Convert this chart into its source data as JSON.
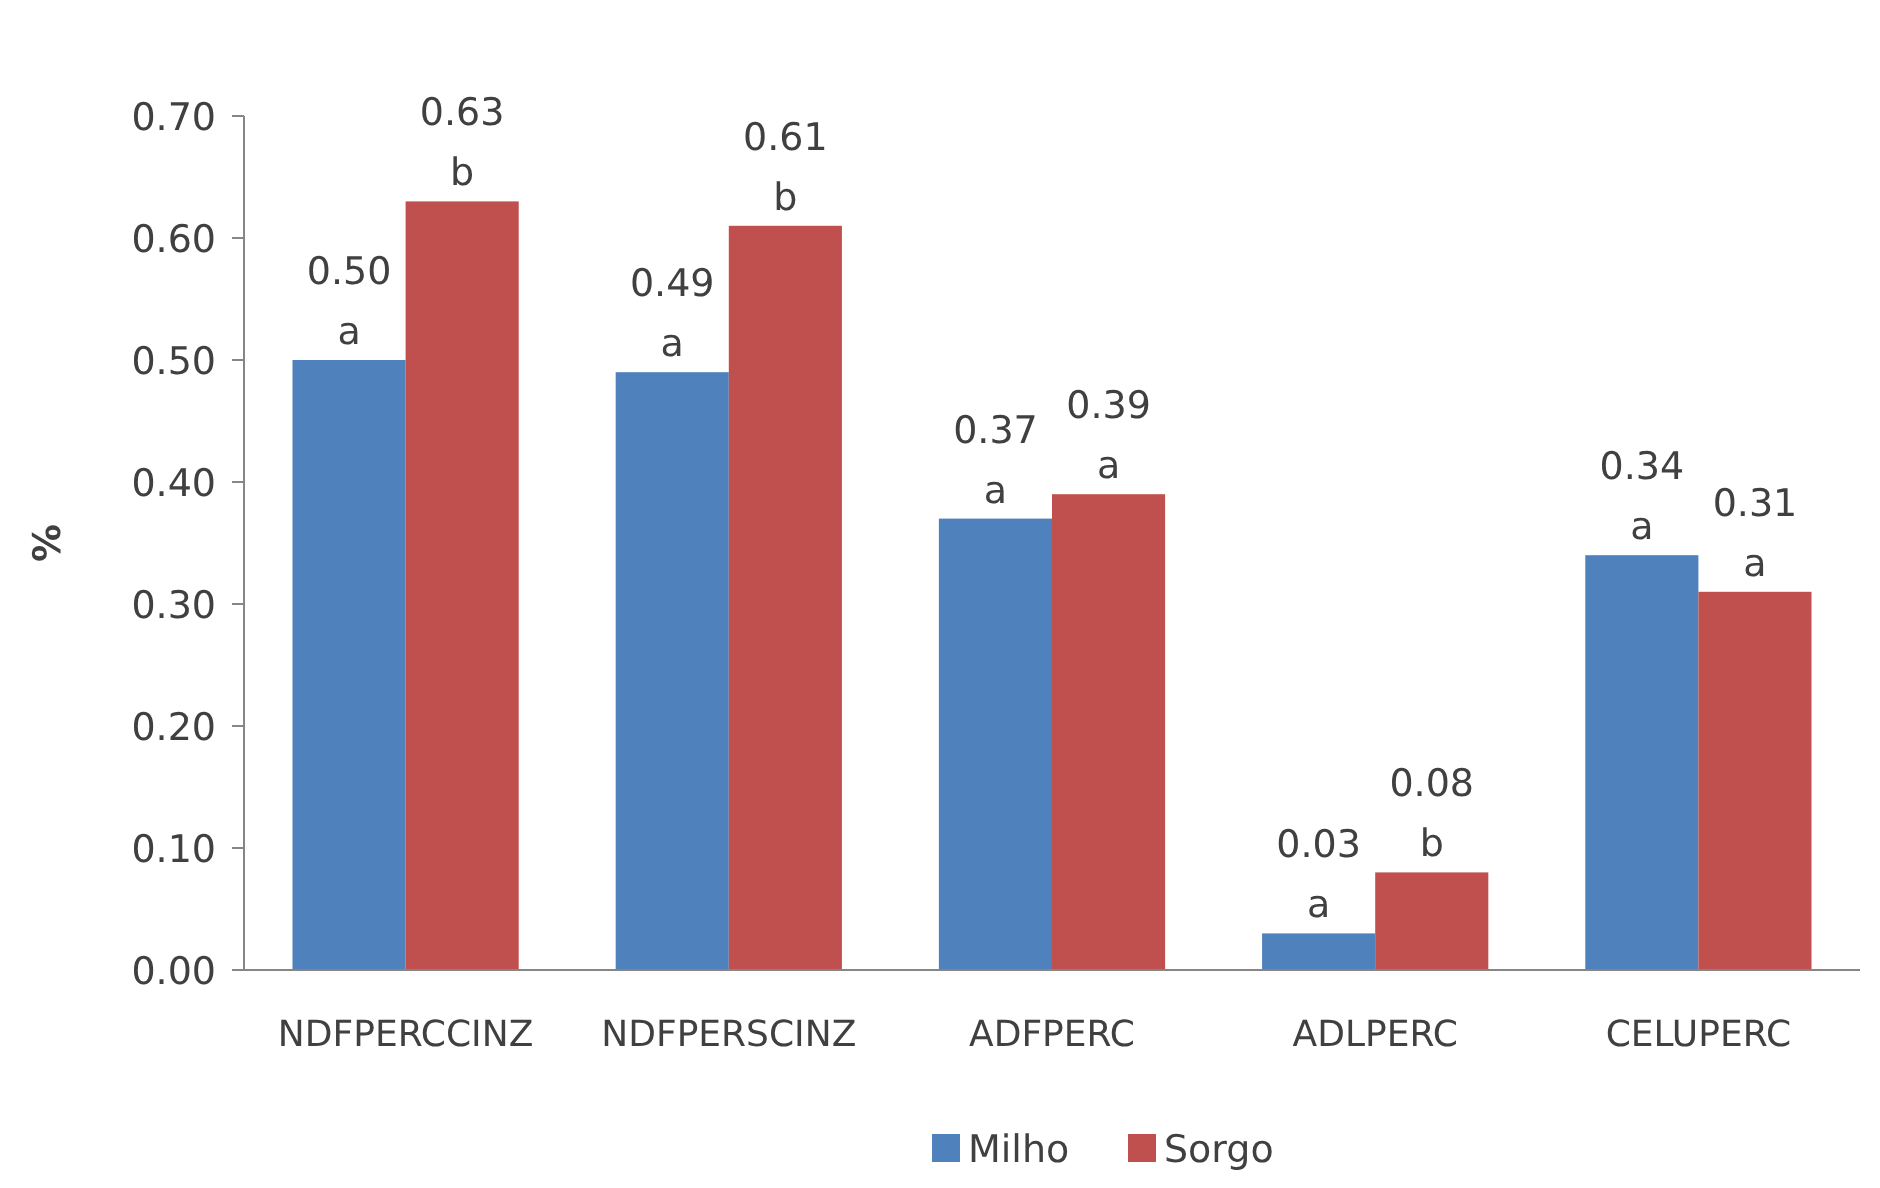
{
  "chart_data": {
    "type": "bar",
    "ylabel": "%",
    "categories": [
      "NDFPERCCINZ",
      "NDFPERSCINZ",
      "ADFPERC",
      "ADLPERC",
      "CELUPERC"
    ],
    "series": [
      {
        "name": "Milho",
        "color": "#4f81bd",
        "values": [
          0.5,
          0.49,
          0.37,
          0.03,
          0.34
        ],
        "value_labels": [
          "0.50\na",
          "0.49\na",
          "0.37\na",
          "0.03\na",
          "0.34\na"
        ]
      },
      {
        "name": "Sorgo",
        "color": "#c0504d",
        "values": [
          0.63,
          0.61,
          0.39,
          0.08,
          0.31
        ],
        "value_labels": [
          "0.63\nb",
          "0.61\nb",
          "0.39\na",
          "0.08\nb",
          "0.31\na"
        ]
      }
    ],
    "ylim": [
      0,
      0.7
    ],
    "yticks": [
      {
        "value": 0,
        "label": "0.00"
      },
      {
        "value": 0.1,
        "label": "0.10"
      },
      {
        "value": 0.2,
        "label": "0.20"
      },
      {
        "value": 0.3,
        "label": "0.30"
      },
      {
        "value": 0.4,
        "label": "0.40"
      },
      {
        "value": 0.5,
        "label": "0.50"
      },
      {
        "value": 0.6,
        "label": "0.60"
      },
      {
        "value": 0.7,
        "label": "0.70"
      }
    ],
    "grid": false,
    "legend": "bottom"
  }
}
